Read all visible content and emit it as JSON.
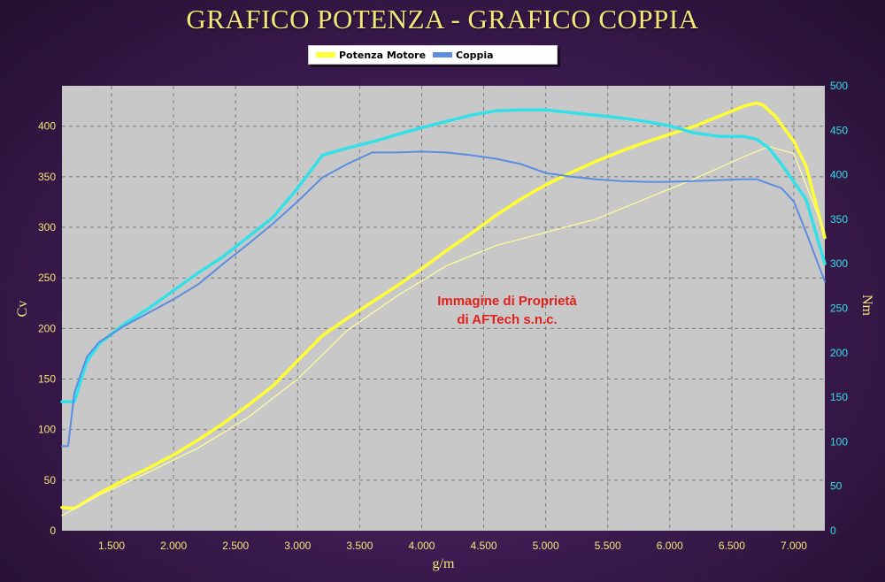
{
  "header": {
    "title": "GRAFICO POTENZA - GRAFICO COPPIA"
  },
  "legend": {
    "items": [
      {
        "label": "Potenza Motore",
        "color": "#ffff33"
      },
      {
        "label": "Coppia",
        "color": "#5b8de0"
      }
    ]
  },
  "watermark": {
    "line1": "Immagine di Proprietà",
    "line2": "di AFTech s.n.c."
  },
  "chart_data": {
    "type": "line",
    "xlabel": "g/m",
    "ylabel_left": "Cv",
    "ylabel_right": "Nm",
    "xlim": [
      1100,
      7250
    ],
    "ylim_left": [
      0,
      440
    ],
    "ylim_right": [
      0,
      500
    ],
    "x_ticks": [
      1500,
      2000,
      2500,
      3000,
      3500,
      4000,
      4500,
      5000,
      5500,
      6000,
      6500,
      7000
    ],
    "x_tick_labels": [
      "1.500",
      "2.000",
      "2.500",
      "3.000",
      "3.500",
      "4.000",
      "4.500",
      "5.000",
      "5.500",
      "6.000",
      "6.500",
      "7.000"
    ],
    "y_left_ticks": [
      0,
      50,
      100,
      150,
      200,
      250,
      300,
      350,
      400
    ],
    "y_right_ticks": [
      0,
      50,
      100,
      150,
      200,
      250,
      300,
      350,
      400,
      450,
      500
    ],
    "grid": true,
    "plot_bg": "#c8c8c8",
    "series": [
      {
        "name": "Potenza Motore",
        "axis": "left",
        "color": "#ffff33",
        "width": 3.5,
        "x": [
          1100,
          1200,
          1400,
          1600,
          1800,
          2000,
          2200,
          2400,
          2600,
          2800,
          3000,
          3200,
          3400,
          3600,
          3800,
          4000,
          4200,
          4400,
          4600,
          4800,
          5000,
          5200,
          5400,
          5600,
          5800,
          6000,
          6200,
          6400,
          6600,
          6700,
          6750,
          6850,
          7000,
          7100,
          7250
        ],
        "y": [
          23,
          22,
          37,
          50,
          62,
          75,
          90,
          106,
          124,
          143,
          168,
          193,
          210,
          226,
          242,
          259,
          277,
          294,
          312,
          328,
          342,
          354,
          365,
          375,
          384,
          392,
          400,
          410,
          420,
          423,
          421,
          410,
          385,
          360,
          290
        ]
      },
      {
        "name": "",
        "axis": "left",
        "color": "#ffff99",
        "width": 1.2,
        "x": [
          1100,
          1400,
          1800,
          2200,
          2600,
          3000,
          3400,
          3800,
          4200,
          4600,
          5000,
          5400,
          5800,
          6200,
          6600,
          6800,
          7000,
          7250
        ],
        "y": [
          15,
          35,
          58,
          82,
          112,
          150,
          198,
          232,
          262,
          282,
          295,
          308,
          328,
          348,
          370,
          380,
          373,
          295
        ]
      },
      {
        "name": "",
        "axis": "right",
        "color": "#33e0e8",
        "width": 3.5,
        "x": [
          1100,
          1200,
          1300,
          1400,
          1600,
          1800,
          2000,
          2200,
          2400,
          2600,
          2800,
          3000,
          3200,
          3400,
          3600,
          3800,
          4000,
          4200,
          4400,
          4600,
          4800,
          5000,
          5200,
          5400,
          5600,
          5800,
          6000,
          6200,
          6400,
          6600,
          6700,
          6800,
          6900,
          7000,
          7100,
          7250
        ],
        "y": [
          145,
          145,
          190,
          210,
          232,
          250,
          270,
          290,
          308,
          330,
          352,
          385,
          422,
          430,
          437,
          445,
          453,
          460,
          467,
          472,
          473,
          473,
          470,
          467,
          464,
          460,
          455,
          447,
          443,
          443,
          440,
          430,
          412,
          392,
          372,
          300
        ]
      },
      {
        "name": "Coppia",
        "axis": "right",
        "color": "#5b8de0",
        "width": 2,
        "x": [
          1100,
          1150,
          1200,
          1300,
          1400,
          1600,
          1800,
          2000,
          2200,
          2400,
          2600,
          2800,
          3000,
          3200,
          3400,
          3600,
          3800,
          4000,
          4200,
          4400,
          4600,
          4800,
          5000,
          5200,
          5400,
          5600,
          5800,
          6000,
          6200,
          6400,
          6600,
          6700,
          6800,
          6900,
          7000,
          7100,
          7250
        ],
        "y": [
          95,
          95,
          155,
          195,
          212,
          230,
          245,
          260,
          277,
          300,
          322,
          345,
          370,
          397,
          412,
          425,
          425,
          426,
          425,
          422,
          418,
          412,
          402,
          398,
          395,
          393,
          392,
          392,
          393,
          394,
          395,
          395,
          390,
          385,
          370,
          335,
          280
        ]
      }
    ]
  }
}
